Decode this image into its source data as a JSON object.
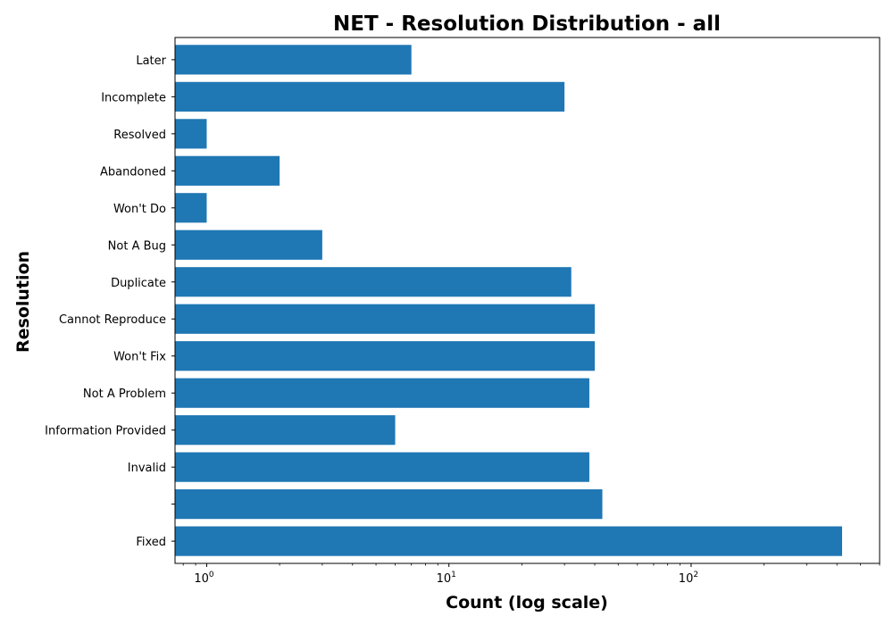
{
  "chart_data": {
    "type": "bar",
    "orientation": "horizontal",
    "title": "NET - Resolution Distribution - all",
    "xlabel": "Count (log scale)",
    "ylabel": "Resolution",
    "x_scale": "log",
    "xlim": [
      0.74,
      600
    ],
    "x_ticks": [
      {
        "base": "10",
        "exp": "0",
        "value": 1
      },
      {
        "base": "10",
        "exp": "1",
        "value": 10
      },
      {
        "base": "10",
        "exp": "2",
        "value": 100
      }
    ],
    "grid": false,
    "bar_color": "#1f77b4",
    "categories": [
      "Fixed",
      "",
      "Invalid",
      "Information Provided",
      "Not A Problem",
      "Won't Fix",
      "Cannot Reproduce",
      "Duplicate",
      "Not A Bug",
      "Won't Do",
      "Abandoned",
      "Resolved",
      "Incomplete",
      "Later"
    ],
    "values": [
      420,
      43,
      38,
      6,
      38,
      40,
      40,
      32,
      3,
      1,
      2,
      1,
      30,
      7
    ]
  }
}
